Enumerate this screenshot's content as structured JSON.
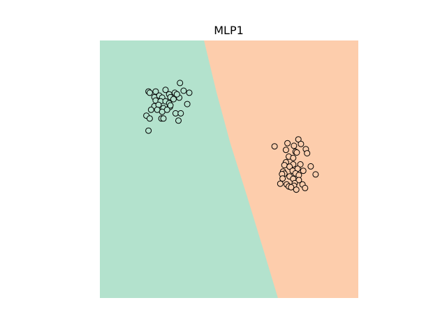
{
  "chart_data": {
    "type": "scatter",
    "title": "MLP1",
    "xlabel": "",
    "ylabel": "",
    "axes_visible": false,
    "grid": false,
    "xlim": [
      0,
      100
    ],
    "ylim": [
      0,
      100
    ],
    "regions": [
      {
        "name": "class-0-region",
        "color": "#b3e2cd"
      },
      {
        "name": "class-1-region",
        "color": "#fdcdac"
      }
    ],
    "decision_boundary": [
      [
        40.3,
        100
      ],
      [
        45.1,
        80
      ],
      [
        50.5,
        60
      ],
      [
        56.8,
        40
      ],
      [
        62.9,
        20
      ],
      [
        68.9,
        0
      ]
    ],
    "series": [
      {
        "class": 0,
        "points": [
          [
            31.0,
            83.5
          ],
          [
            18.8,
            80.2
          ],
          [
            19.3,
            79.7
          ],
          [
            21.6,
            80.2
          ],
          [
            26.8,
            79.1
          ],
          [
            29.0,
            79.7
          ],
          [
            34.6,
            79.7
          ],
          [
            21.1,
            78.0
          ],
          [
            23.0,
            78.6
          ],
          [
            24.1,
            77.8
          ],
          [
            27.3,
            78.0
          ],
          [
            28.5,
            77.2
          ],
          [
            30.7,
            77.8
          ],
          [
            21.6,
            76.7
          ],
          [
            23.5,
            76.4
          ],
          [
            25.4,
            76.4
          ],
          [
            26.8,
            75.6
          ],
          [
            33.8,
            75.3
          ],
          [
            21.1,
            74.5
          ],
          [
            22.7,
            75.0
          ],
          [
            24.6,
            73.7
          ],
          [
            27.1,
            74.2
          ],
          [
            19.8,
            73.1
          ],
          [
            22.2,
            73.1
          ],
          [
            24.1,
            72.3
          ],
          [
            26.0,
            73.1
          ],
          [
            29.3,
            71.7
          ],
          [
            31.3,
            71.7
          ],
          [
            18.0,
            70.8
          ],
          [
            19.3,
            69.7
          ],
          [
            23.8,
            69.7
          ],
          [
            24.6,
            69.7
          ],
          [
            30.4,
            68.9
          ],
          [
            18.8,
            65.0
          ],
          [
            29.8,
            79.1
          ],
          [
            32.4,
            80.5
          ],
          [
            25.4,
            80.8
          ],
          [
            27.3,
            74.8
          ]
        ]
      },
      {
        "class": 1,
        "points": [
          [
            76.8,
            61.6
          ],
          [
            75.1,
            59.1
          ],
          [
            72.6,
            60.1
          ],
          [
            77.8,
            59.8
          ],
          [
            67.6,
            58.9
          ],
          [
            72.0,
            57.5
          ],
          [
            79.7,
            57.8
          ],
          [
            75.7,
            56.8
          ],
          [
            76.2,
            56.5
          ],
          [
            80.2,
            56.2
          ],
          [
            73.1,
            54.9
          ],
          [
            74.8,
            54.4
          ],
          [
            72.0,
            52.7
          ],
          [
            71.4,
            51.6
          ],
          [
            74.8,
            51.9
          ],
          [
            77.6,
            51.9
          ],
          [
            81.6,
            51.1
          ],
          [
            73.4,
            51.0
          ],
          [
            76.5,
            50.2
          ],
          [
            74.6,
            49.4
          ],
          [
            70.9,
            49.1
          ],
          [
            75.7,
            48.4
          ],
          [
            78.7,
            49.4
          ],
          [
            71.4,
            48.3
          ],
          [
            70.5,
            48.1
          ],
          [
            83.5,
            48.0
          ],
          [
            73.4,
            47.2
          ],
          [
            77.0,
            47.7
          ],
          [
            74.8,
            46.3
          ],
          [
            70.7,
            46.4
          ],
          [
            77.0,
            45.8
          ],
          [
            75.4,
            44.6
          ],
          [
            72.3,
            44.1
          ],
          [
            69.8,
            44.4
          ],
          [
            73.1,
            43.3
          ],
          [
            75.1,
            43.6
          ],
          [
            78.4,
            44.1
          ],
          [
            79.4,
            42.7
          ],
          [
            74.0,
            43.0
          ],
          [
            76.0,
            42.1
          ]
        ]
      }
    ]
  }
}
